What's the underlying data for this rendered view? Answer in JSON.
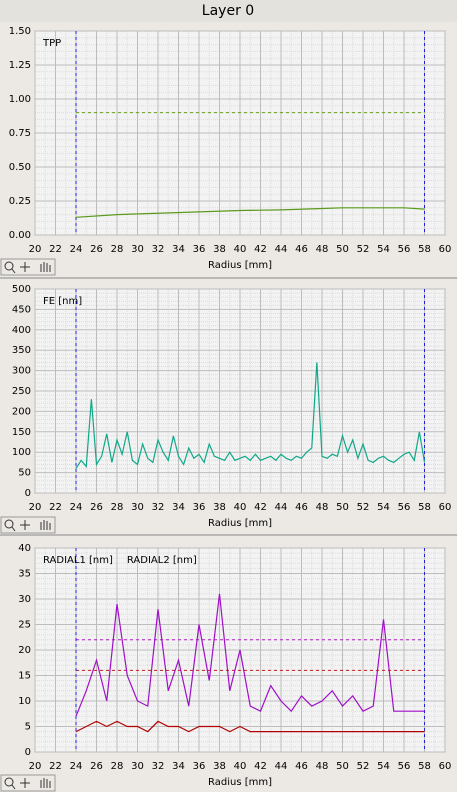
{
  "header": {
    "title": "Layer 0"
  },
  "chart_data": [
    {
      "type": "line",
      "xlabel": "Radius [mm]",
      "xlim": [
        20,
        60
      ],
      "xticks": [
        20,
        22,
        24,
        26,
        28,
        30,
        32,
        34,
        36,
        38,
        40,
        42,
        44,
        46,
        48,
        50,
        52,
        54,
        56,
        58,
        60
      ],
      "ylim": [
        0,
        1.5
      ],
      "yticks": [
        {
          "value": 1.5,
          "label": "1.50"
        },
        {
          "value": 1.25,
          "label": "1.25"
        },
        {
          "value": 1.0,
          "label": "1.00"
        },
        {
          "value": 0.75,
          "label": "0.75"
        },
        {
          "value": 0.5,
          "label": "0.50"
        },
        {
          "value": 0.25,
          "label": "0.25"
        },
        {
          "value": 0,
          "label": "0.00"
        }
      ],
      "grid": true,
      "vlines": [
        24,
        58
      ],
      "vline_color": "#2020e0",
      "hlines": [
        {
          "value": 0.9,
          "color": "#6aa121"
        }
      ],
      "x": [
        24,
        28,
        32,
        36,
        40,
        44,
        48,
        50,
        52,
        56,
        58
      ],
      "series": [
        {
          "name": "TPP",
          "color": "#5a9a1a",
          "values": [
            0.13,
            0.15,
            0.16,
            0.17,
            0.18,
            0.185,
            0.195,
            0.2,
            0.2,
            0.2,
            0.19
          ]
        }
      ]
    },
    {
      "type": "line",
      "xlabel": "Radius [mm]",
      "xlim": [
        20,
        60
      ],
      "xticks": [
        20,
        22,
        24,
        26,
        28,
        30,
        32,
        34,
        36,
        38,
        40,
        42,
        44,
        46,
        48,
        50,
        52,
        54,
        56,
        58,
        60
      ],
      "ylim": [
        0,
        500
      ],
      "yticks": [
        500,
        450,
        400,
        350,
        300,
        250,
        200,
        150,
        100,
        50,
        0
      ],
      "grid": true,
      "vlines": [
        24,
        58
      ],
      "vline_color": "#2020e0",
      "hlines": [],
      "x": [
        24,
        24.5,
        25,
        25.5,
        26,
        26.5,
        27,
        27.5,
        28,
        28.5,
        29,
        29.5,
        30,
        30.5,
        31,
        31.5,
        32,
        32.5,
        33,
        33.5,
        34,
        34.5,
        35,
        35.5,
        36,
        36.5,
        37,
        37.5,
        38,
        38.5,
        39,
        39.5,
        40,
        40.5,
        41,
        41.5,
        42,
        42.5,
        43,
        43.5,
        44,
        44.5,
        45,
        45.5,
        46,
        46.5,
        47,
        47.5,
        48,
        48.5,
        49,
        49.5,
        50,
        50.5,
        51,
        51.5,
        52,
        52.5,
        53,
        53.5,
        54,
        54.5,
        55,
        55.5,
        56,
        56.5,
        57,
        57.5,
        58
      ],
      "series": [
        {
          "name": "FE [nm]",
          "color": "#10a88a",
          "values": [
            60,
            80,
            65,
            230,
            70,
            90,
            145,
            75,
            130,
            95,
            150,
            80,
            70,
            120,
            85,
            75,
            130,
            100,
            80,
            140,
            90,
            70,
            110,
            85,
            95,
            75,
            120,
            90,
            85,
            80,
            100,
            80,
            85,
            90,
            80,
            95,
            80,
            85,
            90,
            80,
            95,
            85,
            80,
            90,
            85,
            100,
            110,
            320,
            90,
            85,
            95,
            90,
            140,
            100,
            130,
            85,
            120,
            80,
            75,
            85,
            90,
            80,
            75,
            85,
            95,
            100,
            80,
            150,
            75
          ]
        }
      ]
    },
    {
      "type": "line",
      "xlabel": "Radius [mm]",
      "xlim": [
        20,
        60
      ],
      "xticks": [
        20,
        22,
        24,
        26,
        28,
        30,
        32,
        34,
        36,
        38,
        40,
        42,
        44,
        46,
        48,
        50,
        52,
        54,
        56,
        58,
        60
      ],
      "ylim": [
        0,
        40
      ],
      "yticks": [
        40,
        35,
        30,
        25,
        20,
        15,
        10,
        5,
        0
      ],
      "grid": true,
      "vlines": [
        24,
        58
      ],
      "vline_color": "#2020e0",
      "hlines": [
        {
          "value": 22,
          "color": "#b020c0"
        },
        {
          "value": 16,
          "color": "#c02020"
        }
      ],
      "x": [
        24,
        25,
        26,
        27,
        28,
        29,
        30,
        31,
        32,
        33,
        34,
        35,
        36,
        37,
        38,
        39,
        40,
        41,
        42,
        43,
        44,
        45,
        46,
        47,
        48,
        49,
        50,
        51,
        52,
        53,
        54,
        55,
        56,
        57,
        58
      ],
      "series": [
        {
          "name": "RADIAL1 [nm]",
          "color": "#a010c8",
          "values": [
            7,
            12,
            18,
            10,
            29,
            15,
            10,
            9,
            28,
            12,
            18,
            9,
            25,
            14,
            31,
            12,
            20,
            9,
            8,
            13,
            10,
            8,
            11,
            9,
            10,
            12,
            9,
            11,
            8,
            9,
            26,
            8,
            8,
            8,
            8
          ]
        },
        {
          "name": "RADIAL2 [nm]",
          "color": "#b00000",
          "values": [
            4,
            5,
            6,
            5,
            6,
            5,
            5,
            4,
            6,
            5,
            5,
            4,
            5,
            5,
            5,
            4,
            5,
            4,
            4,
            4,
            4,
            4,
            4,
            4,
            4,
            4,
            4,
            4,
            4,
            4,
            4,
            4,
            4,
            4,
            4
          ]
        }
      ]
    }
  ]
}
